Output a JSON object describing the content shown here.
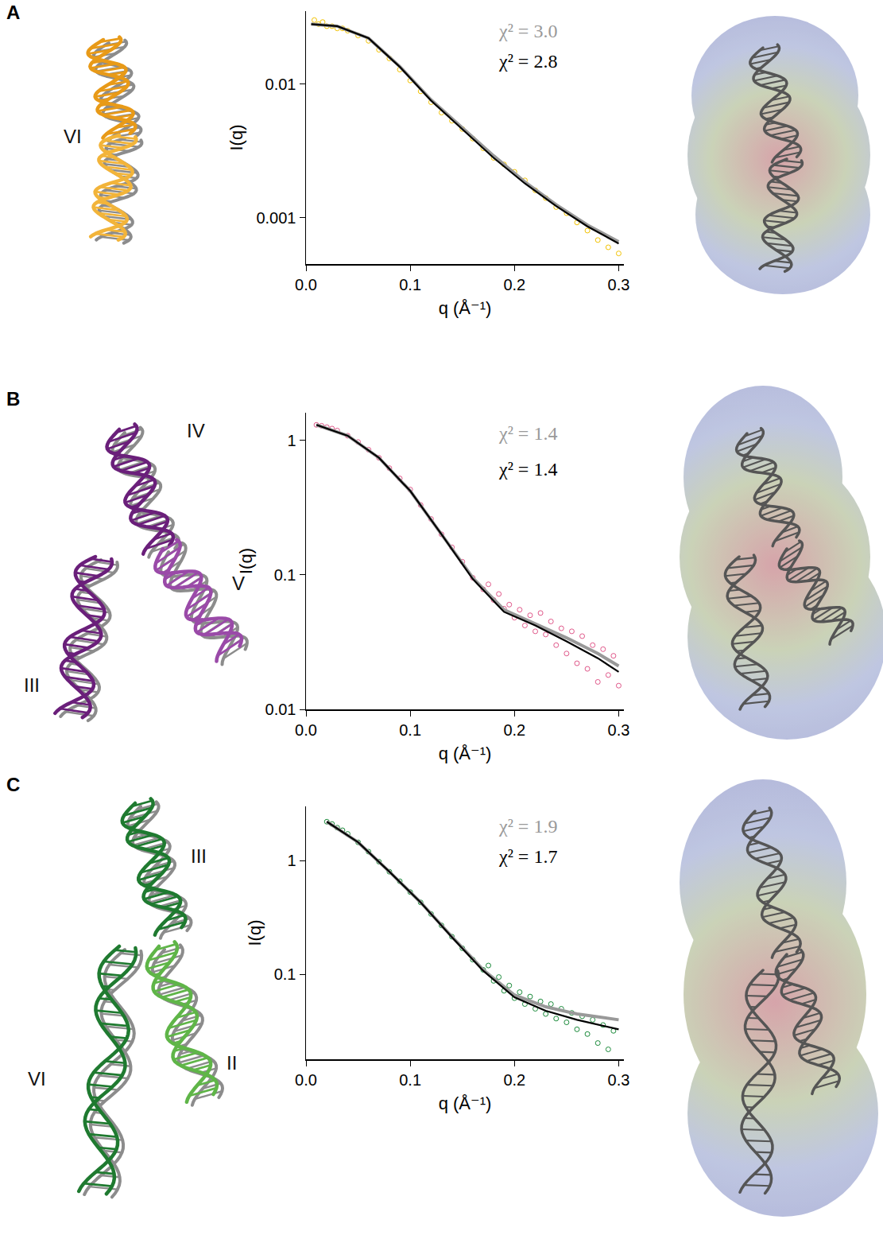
{
  "chart_data": [
    {
      "panel": "A",
      "structure_labels": [
        "VI"
      ],
      "type": "scatter",
      "log": "y",
      "x_label": "q (Å⁻¹)",
      "y_label": "I(q)",
      "xlim": [
        0,
        0.305
      ],
      "xticks": [
        {
          "value": 0,
          "label": "0.0"
        },
        0.1,
        0.2,
        0.3
      ],
      "ylim": [
        0.00045,
        0.035
      ],
      "yticks": [
        0.001,
        0.01
      ],
      "series": [
        {
          "type": "scatter",
          "marker": "open circle",
          "color": "#f2c200",
          "x": [
            0.008,
            0.012,
            0.016,
            0.02,
            0.025,
            0.03,
            0.035,
            0.04,
            0.05,
            0.06,
            0.07,
            0.08,
            0.09,
            0.1,
            0.11,
            0.12,
            0.13,
            0.14,
            0.15,
            0.16,
            0.17,
            0.18,
            0.19,
            0.2,
            0.21,
            0.22,
            0.23,
            0.24,
            0.25,
            0.26,
            0.27,
            0.28,
            0.29,
            0.3
          ],
          "values": [
            0.03,
            0.028,
            0.029,
            0.027,
            0.027,
            0.026,
            0.026,
            0.025,
            0.023,
            0.021,
            0.018,
            0.0155,
            0.0128,
            0.0106,
            0.0088,
            0.0073,
            0.0061,
            0.0053,
            0.0046,
            0.0039,
            0.0033,
            0.0028,
            0.0025,
            0.0022,
            0.0019,
            0.0016,
            0.0014,
            0.0012,
            0.00108,
            0.00092,
            0.0008,
            0.00068,
            0.0006,
            0.00054
          ]
        },
        {
          "type": "line",
          "color": "#999999",
          "label": "χ² = 3.0",
          "x": [
            0.005,
            0.03,
            0.06,
            0.09,
            0.12,
            0.15,
            0.18,
            0.21,
            0.24,
            0.27,
            0.3
          ],
          "values": [
            0.028,
            0.027,
            0.022,
            0.0135,
            0.0076,
            0.0047,
            0.0029,
            0.00185,
            0.00125,
            0.00088,
            0.00066
          ]
        },
        {
          "type": "line",
          "color": "#000000",
          "label": "χ² = 2.8",
          "x": [
            0.005,
            0.03,
            0.06,
            0.09,
            0.12,
            0.15,
            0.18,
            0.21,
            0.24,
            0.27,
            0.3
          ],
          "values": [
            0.028,
            0.027,
            0.022,
            0.0134,
            0.0075,
            0.0046,
            0.0028,
            0.0018,
            0.00122,
            0.00086,
            0.00064
          ]
        }
      ]
    },
    {
      "panel": "B",
      "structure_labels": [
        "IV",
        "V",
        "III"
      ],
      "type": "scatter",
      "log": "y",
      "x_label": "q (Å⁻¹)",
      "y_label": "I(q)",
      "xlim": [
        0,
        0.305
      ],
      "xticks": [
        {
          "value": 0,
          "label": "0.0"
        },
        0.1,
        0.2,
        0.3
      ],
      "ylim": [
        0.01,
        1.6
      ],
      "yticks": [
        0.01,
        0.1,
        1
      ],
      "series": [
        {
          "type": "scatter",
          "marker": "open circle",
          "color": "#e0588a",
          "x": [
            0.01,
            0.015,
            0.02,
            0.025,
            0.03,
            0.04,
            0.05,
            0.06,
            0.07,
            0.08,
            0.09,
            0.1,
            0.11,
            0.12,
            0.13,
            0.14,
            0.15,
            0.16,
            0.17,
            0.175,
            0.18,
            0.185,
            0.19,
            0.195,
            0.2,
            0.205,
            0.21,
            0.215,
            0.22,
            0.225,
            0.23,
            0.235,
            0.24,
            0.245,
            0.25,
            0.255,
            0.26,
            0.265,
            0.27,
            0.275,
            0.28,
            0.285,
            0.29,
            0.295,
            0.3
          ],
          "values": [
            1.3,
            1.28,
            1.25,
            1.22,
            1.18,
            1.08,
            0.97,
            0.85,
            0.74,
            0.62,
            0.52,
            0.43,
            0.33,
            0.26,
            0.2,
            0.16,
            0.125,
            0.095,
            0.078,
            0.085,
            0.065,
            0.072,
            0.056,
            0.06,
            0.048,
            0.055,
            0.042,
            0.05,
            0.038,
            0.052,
            0.036,
            0.045,
            0.03,
            0.04,
            0.026,
            0.038,
            0.022,
            0.035,
            0.02,
            0.03,
            0.016,
            0.028,
            0.018,
            0.025,
            0.015
          ]
        },
        {
          "type": "line",
          "color": "#999999",
          "label": "χ² = 1.4",
          "x": [
            0.01,
            0.04,
            0.07,
            0.1,
            0.13,
            0.16,
            0.19,
            0.22,
            0.25,
            0.28,
            0.3
          ],
          "values": [
            1.3,
            1.08,
            0.74,
            0.42,
            0.2,
            0.095,
            0.055,
            0.043,
            0.034,
            0.026,
            0.021
          ]
        },
        {
          "type": "line",
          "color": "#000000",
          "label": "χ² = 1.4",
          "x": [
            0.01,
            0.04,
            0.07,
            0.1,
            0.13,
            0.16,
            0.19,
            0.22,
            0.25,
            0.28,
            0.3
          ],
          "values": [
            1.3,
            1.08,
            0.74,
            0.42,
            0.2,
            0.093,
            0.053,
            0.042,
            0.032,
            0.024,
            0.019
          ]
        }
      ]
    },
    {
      "panel": "C",
      "structure_labels": [
        "III",
        "II",
        "VI"
      ],
      "type": "scatter",
      "log": "y",
      "x_label": "q (Å⁻¹)",
      "y_label": "I(q)",
      "xlim": [
        0,
        0.305
      ],
      "xticks": [
        {
          "value": 0,
          "label": "0.0"
        },
        0.1,
        0.2,
        0.3
      ],
      "ylim": [
        0.018,
        3.0
      ],
      "yticks": [
        0.1,
        1
      ],
      "series": [
        {
          "type": "scatter",
          "marker": "open circle",
          "color": "#1a8a3a",
          "x": [
            0.02,
            0.025,
            0.03,
            0.035,
            0.04,
            0.05,
            0.06,
            0.07,
            0.08,
            0.09,
            0.1,
            0.11,
            0.12,
            0.13,
            0.14,
            0.15,
            0.16,
            0.17,
            0.175,
            0.18,
            0.185,
            0.19,
            0.195,
            0.2,
            0.205,
            0.21,
            0.215,
            0.22,
            0.225,
            0.23,
            0.235,
            0.24,
            0.245,
            0.25,
            0.255,
            0.26,
            0.265,
            0.27,
            0.275,
            0.28,
            0.285,
            0.29,
            0.295
          ],
          "values": [
            2.2,
            2.1,
            1.95,
            1.85,
            1.72,
            1.45,
            1.2,
            0.98,
            0.8,
            0.66,
            0.53,
            0.43,
            0.34,
            0.27,
            0.215,
            0.17,
            0.135,
            0.11,
            0.12,
            0.088,
            0.095,
            0.072,
            0.08,
            0.062,
            0.07,
            0.055,
            0.064,
            0.05,
            0.058,
            0.045,
            0.055,
            0.041,
            0.05,
            0.038,
            0.046,
            0.033,
            0.043,
            0.03,
            0.04,
            0.025,
            0.036,
            0.022,
            0.032
          ]
        },
        {
          "type": "line",
          "color": "#999999",
          "label": "χ² = 1.9",
          "x": [
            0.02,
            0.05,
            0.08,
            0.11,
            0.14,
            0.17,
            0.2,
            0.23,
            0.26,
            0.3
          ],
          "values": [
            2.2,
            1.45,
            0.8,
            0.43,
            0.215,
            0.11,
            0.066,
            0.052,
            0.045,
            0.04
          ]
        },
        {
          "type": "line",
          "color": "#000000",
          "label": "χ² = 1.7",
          "x": [
            0.02,
            0.05,
            0.08,
            0.11,
            0.14,
            0.17,
            0.2,
            0.23,
            0.26,
            0.3
          ],
          "values": [
            2.2,
            1.45,
            0.8,
            0.43,
            0.213,
            0.108,
            0.063,
            0.048,
            0.04,
            0.033
          ]
        }
      ]
    }
  ]
}
